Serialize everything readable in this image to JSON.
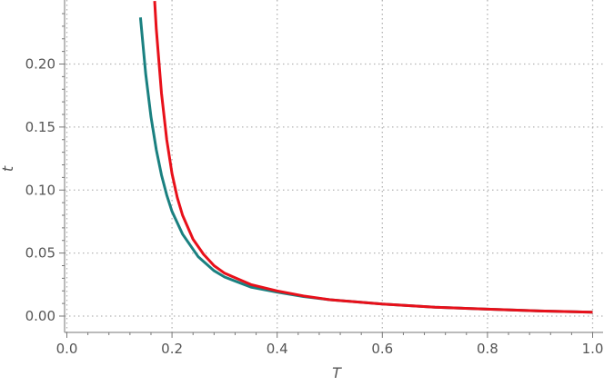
{
  "chart_data": {
    "type": "line",
    "xlabel": "T",
    "ylabel": "t",
    "xlim": [
      0.0,
      1.0
    ],
    "ylim": [
      -0.012,
      0.25
    ],
    "xticks": [
      "0.0",
      "0.2",
      "0.4",
      "0.6",
      "0.8",
      "1.0"
    ],
    "yticks": [
      "0.00",
      "0.05",
      "0.10",
      "0.15",
      "0.20"
    ],
    "grid": true,
    "legend": "none",
    "series": [
      {
        "color": "#1a8080",
        "x": [
          0.14,
          0.15,
          0.16,
          0.17,
          0.18,
          0.19,
          0.2,
          0.22,
          0.25,
          0.28,
          0.3,
          0.35,
          0.4,
          0.45,
          0.5,
          0.6,
          0.7,
          0.8,
          0.9,
          1.0
        ],
        "y": [
          0.237,
          0.192,
          0.158,
          0.132,
          0.112,
          0.096,
          0.083,
          0.065,
          0.047,
          0.036,
          0.031,
          0.023,
          0.019,
          0.0155,
          0.013,
          0.0095,
          0.007,
          0.0055,
          0.004,
          0.003
        ]
      },
      {
        "color": "#e8101a",
        "x": [
          0.167,
          0.17,
          0.18,
          0.19,
          0.2,
          0.21,
          0.22,
          0.24,
          0.26,
          0.28,
          0.3,
          0.35,
          0.4,
          0.45,
          0.5,
          0.6,
          0.7,
          0.8,
          0.9,
          1.0
        ],
        "y": [
          0.25,
          0.228,
          0.177,
          0.14,
          0.113,
          0.094,
          0.08,
          0.061,
          0.049,
          0.04,
          0.034,
          0.025,
          0.02,
          0.016,
          0.013,
          0.0095,
          0.007,
          0.0055,
          0.004,
          0.003
        ]
      }
    ]
  }
}
